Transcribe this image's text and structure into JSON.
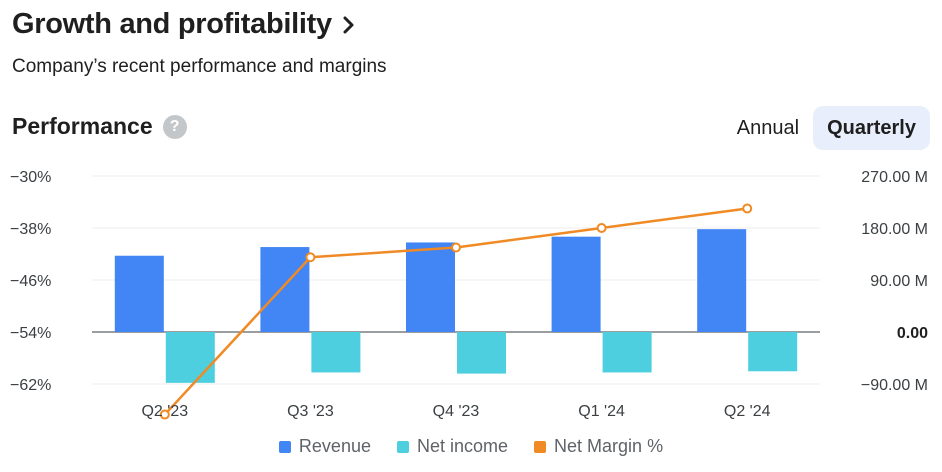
{
  "header": {
    "title": "Growth and profitability",
    "subtitle": "Company’s recent performance and margins"
  },
  "performance": {
    "title": "Performance",
    "help_icon": "?"
  },
  "toggle": {
    "annual_label": "Annual",
    "quarterly_label": "Quarterly",
    "selected": "Quarterly"
  },
  "colors": {
    "revenue": "#4285f4",
    "net_income": "#4ecfe0",
    "net_margin": "#f08a24",
    "grid": "#eeeeee",
    "axis": "#5f6368"
  },
  "chart_data": {
    "type": "bar",
    "categories": [
      "Q2 '23",
      "Q3 '23",
      "Q4 '23",
      "Q1 '24",
      "Q2 '24"
    ],
    "series": [
      {
        "name": "Revenue",
        "type": "bar",
        "axis": "right",
        "values": [
          132,
          147,
          155,
          165,
          178
        ]
      },
      {
        "name": "Net income",
        "type": "bar",
        "axis": "right",
        "values": [
          -88,
          -70,
          -72,
          -70,
          -68
        ]
      },
      {
        "name": "Net Margin %",
        "type": "line",
        "axis": "left",
        "values": [
          -66.7,
          -42.5,
          -41.0,
          -38.0,
          -35.0
        ]
      }
    ],
    "left_axis": {
      "ticks": [
        -30,
        -38,
        -46,
        -54,
        -62
      ],
      "tick_labels": [
        "−30%",
        "−38%",
        "−46%",
        "−54%",
        "−62%"
      ],
      "range": [
        -62,
        -30
      ]
    },
    "right_axis": {
      "ticks": [
        270,
        180,
        90,
        0,
        -90
      ],
      "tick_labels": [
        "270.00 M",
        "180.00 M",
        "90.00 M",
        "0.00",
        "−90.00 M"
      ],
      "range": [
        -90,
        270
      ]
    },
    "grid": true,
    "legend": {
      "position": "bottom-center",
      "items": [
        "Revenue",
        "Net income",
        "Net Margin %"
      ]
    }
  }
}
